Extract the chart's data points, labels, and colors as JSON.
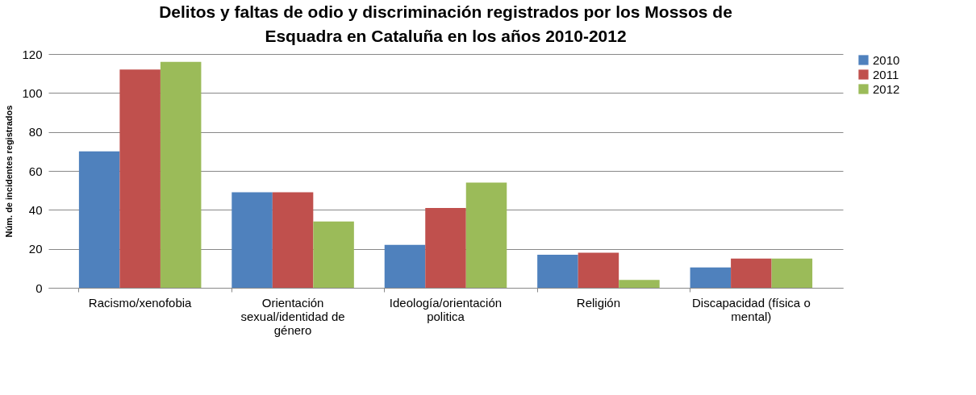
{
  "chart_data": {
    "type": "bar",
    "title": "Delitos y faltas de odio y discriminación registrados por los Mossos de Esquadra en Cataluña en los años 2010-2012",
    "ylabel": "Núm. de incidentes registrados",
    "categories": [
      "Racismo/xenofobia",
      "Orientación sexual/identidad de género",
      "Ideología/orientación politica",
      "Religión",
      "Discapacidad (física o mental)"
    ],
    "series": [
      {
        "name": "2010",
        "color": "#4f81bd",
        "values": [
          70,
          49,
          22,
          17,
          10.5
        ]
      },
      {
        "name": "2011",
        "color": "#c0504d",
        "values": [
          112,
          49,
          41,
          18,
          15
        ]
      },
      {
        "name": "2012",
        "color": "#9bbb59",
        "values": [
          116,
          34,
          54,
          4,
          15
        ]
      }
    ],
    "ylim": [
      0,
      120
    ],
    "yticks": [
      0,
      20,
      40,
      60,
      80,
      100,
      120
    ],
    "grid": "y",
    "legend": "right"
  }
}
